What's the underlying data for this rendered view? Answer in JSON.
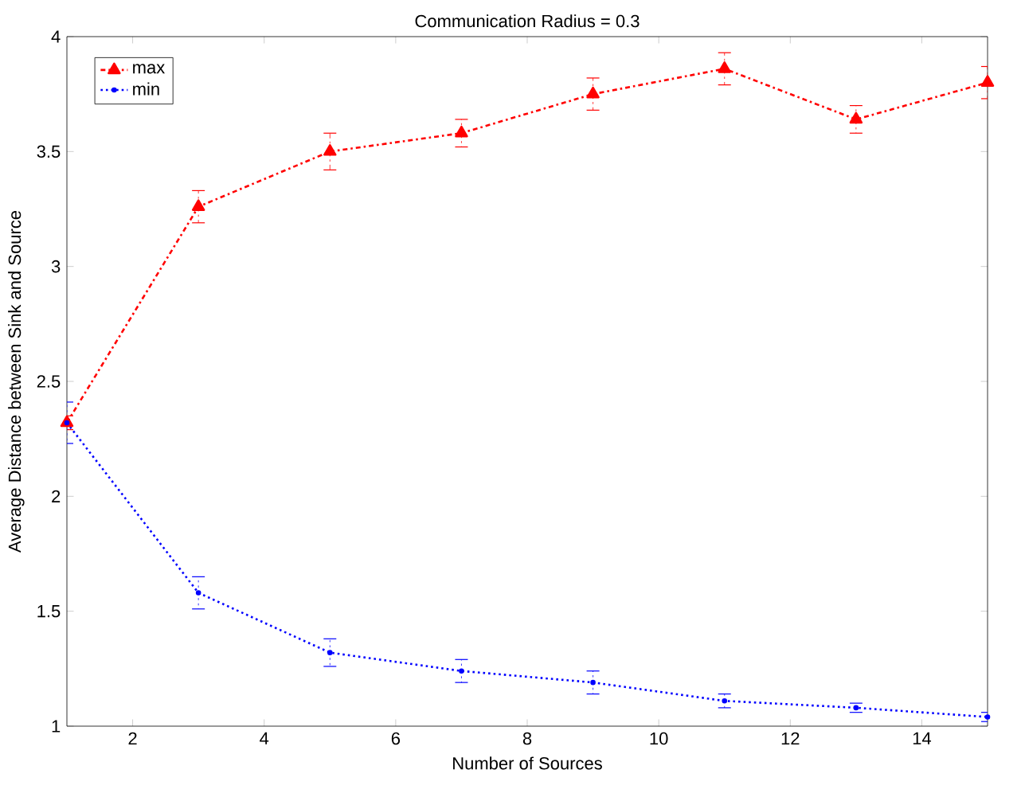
{
  "chart_data": {
    "type": "line",
    "title": "Communication Radius  = 0.3",
    "xlabel": "Number of Sources",
    "ylabel": "Average Distance between Sink and Source",
    "x": [
      1,
      3,
      5,
      7,
      9,
      11,
      13,
      15
    ],
    "series": [
      {
        "name": "max",
        "color": "#ff0000",
        "marker": "triangle",
        "line_style": "dashdot",
        "values": [
          2.32,
          3.26,
          3.5,
          3.58,
          3.75,
          3.86,
          3.64,
          3.8
        ],
        "errors": [
          0.03,
          0.07,
          0.08,
          0.06,
          0.07,
          0.07,
          0.06,
          0.07
        ]
      },
      {
        "name": "min",
        "color": "#0000ff",
        "marker": "circle",
        "line_style": "dotted",
        "values": [
          2.32,
          1.58,
          1.32,
          1.24,
          1.19,
          1.11,
          1.08,
          1.04
        ],
        "errors": [
          0.09,
          0.07,
          0.06,
          0.05,
          0.05,
          0.03,
          0.02,
          0.02
        ]
      }
    ],
    "xlim": [
      1,
      15
    ],
    "ylim": [
      1,
      4
    ],
    "xticks": [
      2,
      4,
      6,
      8,
      10,
      12,
      14
    ],
    "yticks": [
      1,
      1.5,
      2,
      2.5,
      3,
      3.5,
      4
    ],
    "grid": false,
    "legend": "top left"
  }
}
